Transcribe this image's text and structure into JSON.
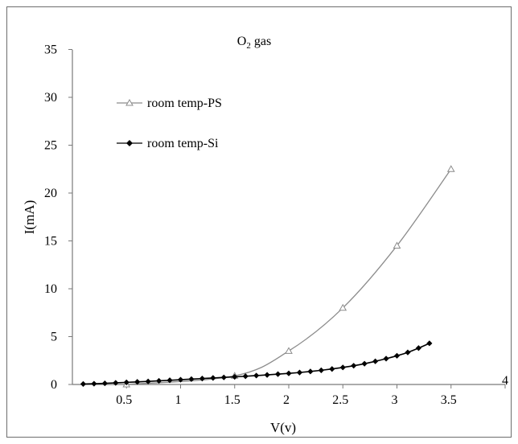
{
  "chart_data": {
    "type": "line",
    "title": {
      "base": "O",
      "subscript": "2",
      "suffix": " gas"
    },
    "xlabel": "V(v)",
    "ylabel": "I(mA)",
    "xlim": [
      0,
      4
    ],
    "ylim": [
      0,
      35
    ],
    "x_ticks": [
      "0.5",
      "1",
      "1.5",
      "2",
      "2.5",
      "3",
      "3.5",
      "4"
    ],
    "x_tick_values": [
      0.5,
      1,
      1.5,
      2,
      2.5,
      3,
      3.5,
      4
    ],
    "y_ticks": [
      "0",
      "5",
      "10",
      "15",
      "20",
      "25",
      "30",
      "35"
    ],
    "y_tick_values": [
      0,
      5,
      10,
      15,
      20,
      25,
      30,
      35
    ],
    "grid": false,
    "legend_position": "top-left",
    "series": [
      {
        "name": "room temp-PS",
        "marker": "triangle-open",
        "color": "#8c8c8c",
        "x": [
          0.5,
          1.5,
          2,
          2.5,
          3,
          3.5
        ],
        "y": [
          0.0,
          0.9,
          3.5,
          8.0,
          14.5,
          22.5
        ]
      },
      {
        "name": "room temp-Si",
        "marker": "diamond-filled",
        "color": "#000000",
        "x": [
          0.1,
          0.2,
          0.3,
          0.4,
          0.5,
          0.6,
          0.7,
          0.8,
          0.9,
          1.0,
          1.1,
          1.2,
          1.3,
          1.4,
          1.5,
          1.6,
          1.7,
          1.8,
          1.9,
          2.0,
          2.1,
          2.2,
          2.3,
          2.4,
          2.5,
          2.6,
          2.7,
          2.8,
          2.9,
          3.0,
          3.1,
          3.2,
          3.3
        ],
        "y": [
          0.05,
          0.08,
          0.12,
          0.17,
          0.22,
          0.27,
          0.32,
          0.38,
          0.44,
          0.5,
          0.56,
          0.62,
          0.68,
          0.74,
          0.8,
          0.86,
          0.93,
          1.0,
          1.08,
          1.16,
          1.25,
          1.36,
          1.48,
          1.62,
          1.78,
          1.96,
          2.17,
          2.42,
          2.7,
          3.0,
          3.35,
          3.8,
          4.3
        ]
      }
    ]
  }
}
